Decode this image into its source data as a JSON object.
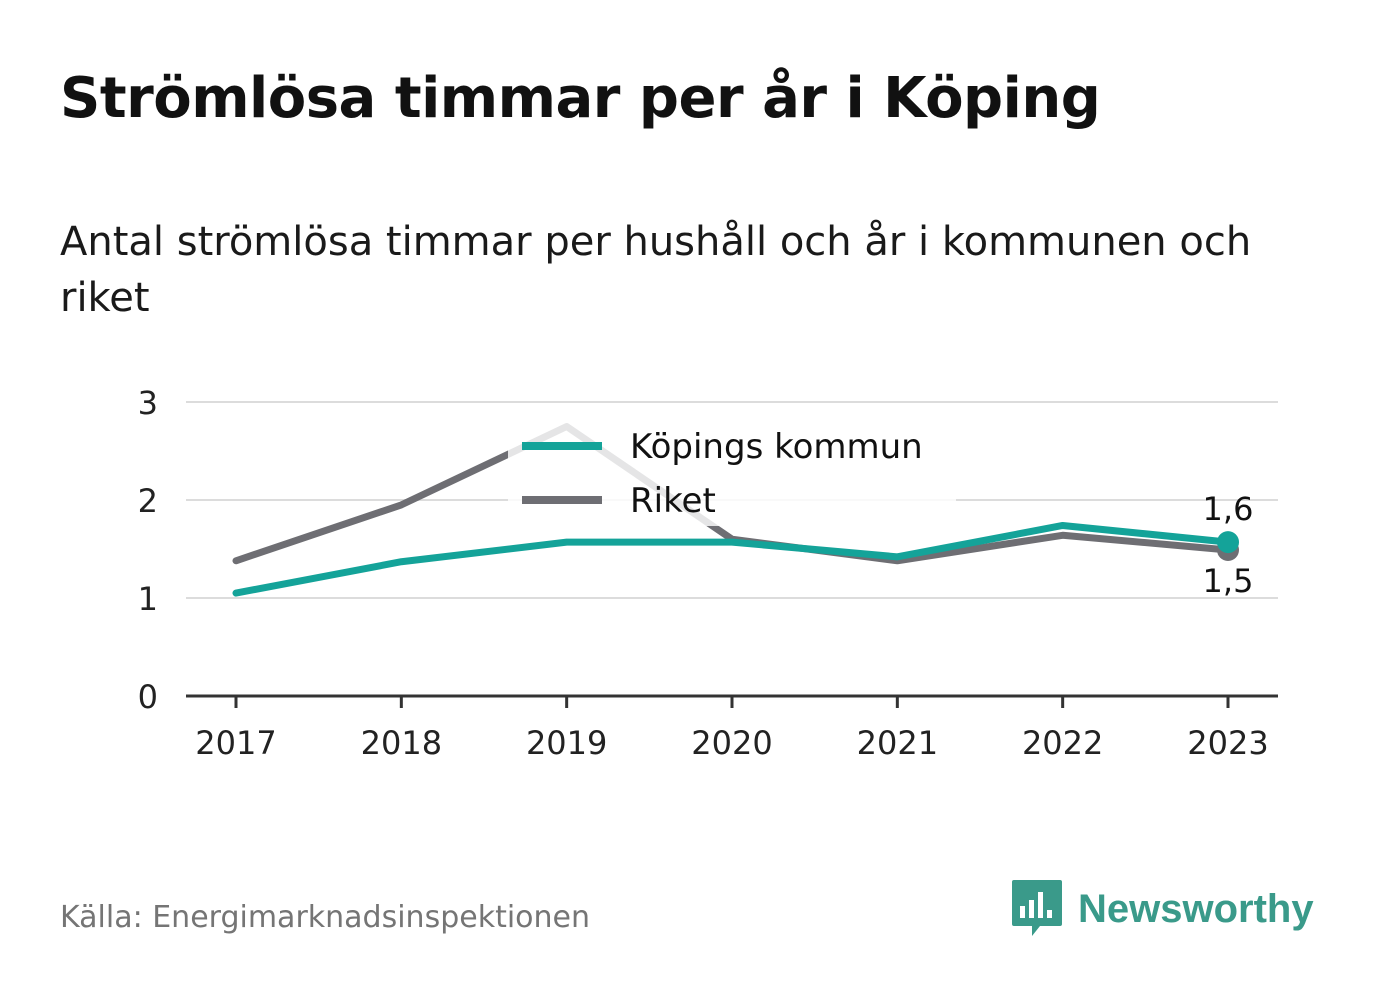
{
  "title": "Strömlösa timmar per år i Köping",
  "subtitle": "Antal strömlösa timmar per hushåll och år i kommunen och riket",
  "source": "Källa: Energimarknadsinspektionen",
  "brand": {
    "name": "Newsworthy",
    "icon": "newsworthy-logo-icon"
  },
  "colors": {
    "kopings": "#14a399",
    "riket": "#6e6e73",
    "grid": "#dcdcdc",
    "axis": "#333333"
  },
  "chart_data": {
    "type": "line",
    "x": [
      "2017",
      "2018",
      "2019",
      "2020",
      "2021",
      "2022",
      "2023"
    ],
    "ylim": [
      0,
      3
    ],
    "yticks": [
      "0",
      "1",
      "2",
      "3"
    ],
    "grid": true,
    "legend_position": "top-center",
    "series": [
      {
        "name": "Köpings kommun",
        "values": [
          1.05,
          1.37,
          1.57,
          1.57,
          1.42,
          1.74,
          1.57
        ],
        "end_label": "1,6"
      },
      {
        "name": "Riket",
        "values": [
          1.38,
          1.95,
          2.75,
          1.6,
          1.38,
          1.64,
          1.49
        ],
        "end_label": "1,5"
      }
    ]
  }
}
